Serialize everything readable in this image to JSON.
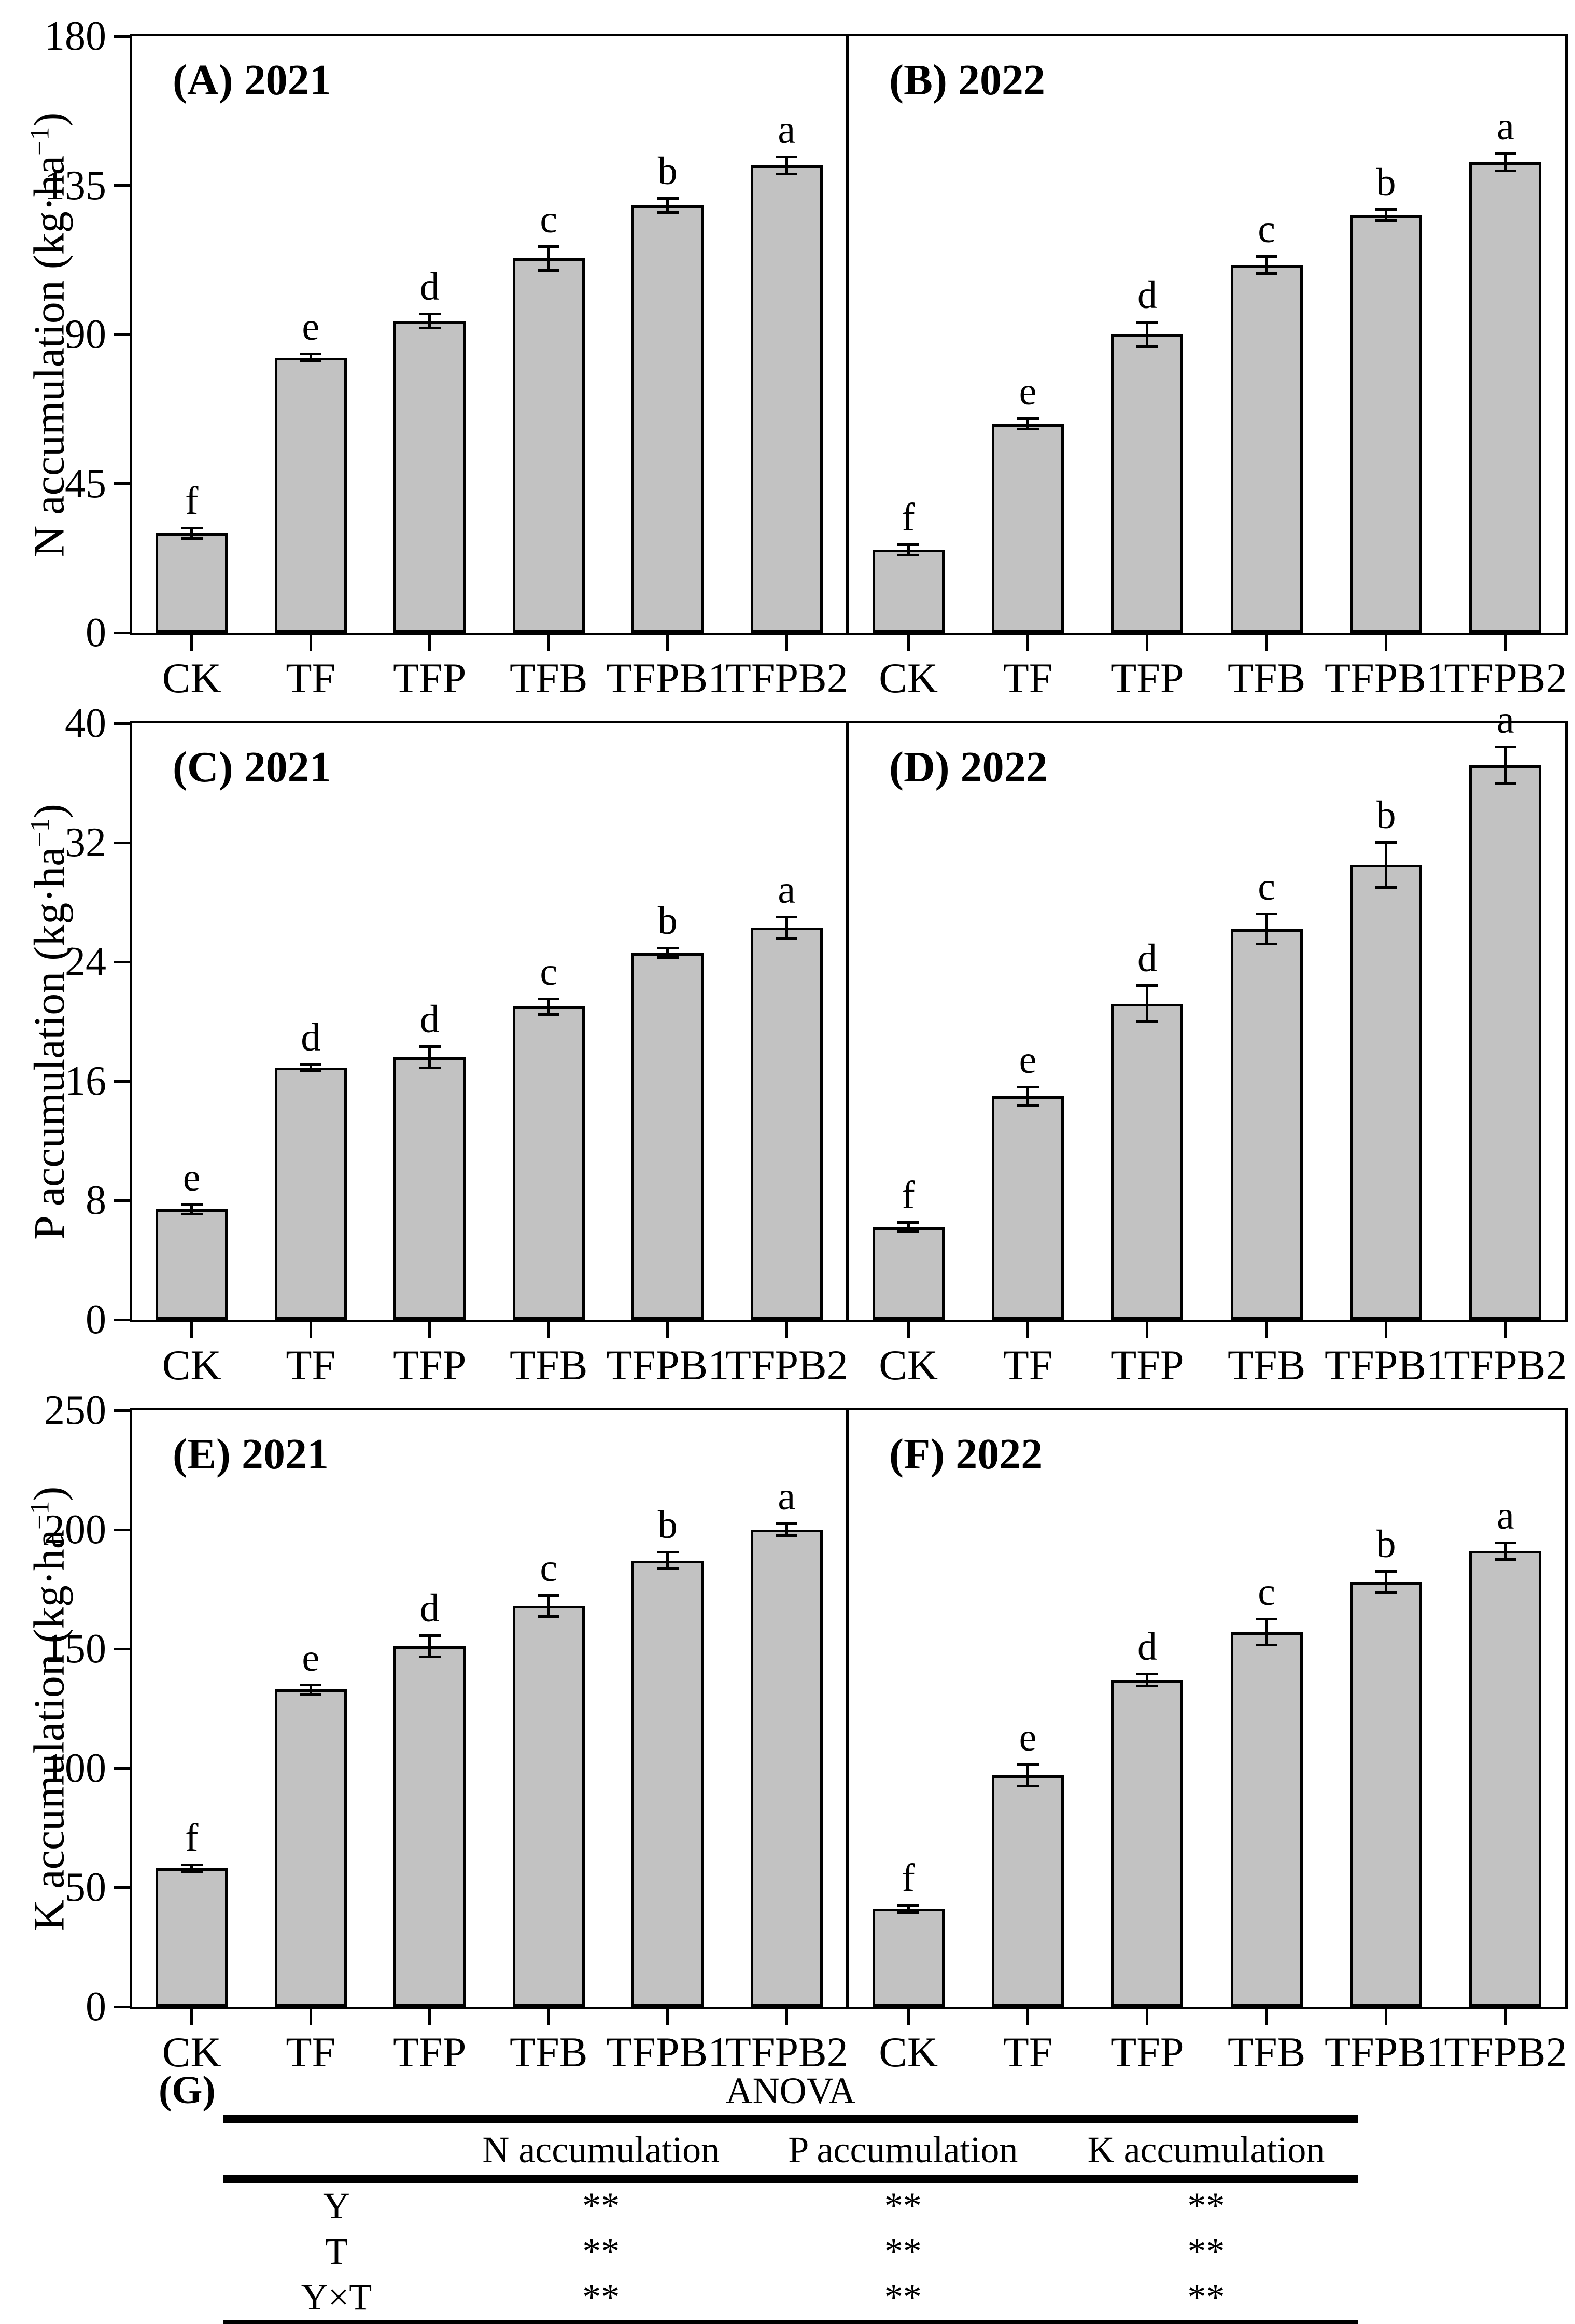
{
  "anova": {
    "panel_label": "(G)",
    "title": "ANOVA",
    "columns": [
      "N accumulation",
      "P accumulation",
      "K accumulation"
    ],
    "rows": [
      {
        "label": "Y",
        "values": [
          "**",
          "**",
          "**"
        ]
      },
      {
        "label": "T",
        "values": [
          "**",
          "**",
          "**"
        ]
      },
      {
        "label": "Y×T",
        "values": [
          "**",
          "**",
          "**"
        ]
      }
    ]
  },
  "chart_data": [
    {
      "type": "bar",
      "panel": "a",
      "title": "(A) 2021",
      "year": "2021",
      "ylabel": "N accumulation (kg·ha⁻¹)",
      "categories": [
        "CK",
        "TF",
        "TFP",
        "TFB",
        "TFPB1",
        "TFPB2"
      ],
      "values": [
        30,
        83,
        94,
        113,
        129,
        141
      ],
      "errors": [
        2,
        1.5,
        2.5,
        4,
        2.5,
        3
      ],
      "letters": [
        "f",
        "e",
        "d",
        "c",
        "b",
        "a"
      ],
      "ylim": [
        0,
        180
      ],
      "yticks": [
        0,
        45,
        90,
        135,
        180
      ],
      "grid": false,
      "legend": "none"
    },
    {
      "type": "bar",
      "panel": "b",
      "title": "(B) 2022",
      "year": "2022",
      "ylabel": "N accumulation (kg·ha⁻¹)",
      "categories": [
        "CK",
        "TF",
        "TFP",
        "TFB",
        "TFPB1",
        "TFPB2"
      ],
      "values": [
        25,
        63,
        90,
        111,
        126,
        142
      ],
      "errors": [
        2,
        2,
        4,
        3,
        2,
        3
      ],
      "letters": [
        "f",
        "e",
        "d",
        "c",
        "b",
        "a"
      ],
      "ylim": [
        0,
        180
      ],
      "yticks": [
        0,
        45,
        90,
        135,
        180
      ],
      "grid": false,
      "legend": "none"
    },
    {
      "type": "bar",
      "panel": "c",
      "title": "(C) 2021",
      "year": "2021",
      "ylabel": "P accumulation (kg·ha⁻¹)",
      "categories": [
        "CK",
        "TF",
        "TFP",
        "TFB",
        "TFPB1",
        "TFPB2"
      ],
      "values": [
        7.4,
        16.9,
        17.6,
        21.0,
        24.6,
        26.3
      ],
      "errors": [
        0.4,
        0.3,
        0.8,
        0.6,
        0.4,
        0.8
      ],
      "letters": [
        "e",
        "d",
        "d",
        "c",
        "b",
        "a"
      ],
      "ylim": [
        0,
        40
      ],
      "yticks": [
        0,
        8,
        16,
        24,
        32,
        40
      ],
      "grid": false,
      "legend": "none"
    },
    {
      "type": "bar",
      "panel": "d",
      "title": "(D) 2022",
      "year": "2022",
      "ylabel": "P accumulation (kg·ha⁻¹)",
      "categories": [
        "CK",
        "TF",
        "TFP",
        "TFB",
        "TFPB1",
        "TFPB2"
      ],
      "values": [
        6.2,
        15.0,
        21.2,
        26.2,
        30.5,
        37.2
      ],
      "errors": [
        0.4,
        0.7,
        1.3,
        1.1,
        1.6,
        1.3
      ],
      "letters": [
        "f",
        "e",
        "d",
        "c",
        "b",
        "a"
      ],
      "ylim": [
        0,
        40
      ],
      "yticks": [
        0,
        8,
        16,
        24,
        32,
        40
      ],
      "grid": false,
      "legend": "none"
    },
    {
      "type": "bar",
      "panel": "e",
      "title": "(E) 2021",
      "year": "2021",
      "ylabel": "K accumulation (kg·ha⁻¹)",
      "categories": [
        "CK",
        "TF",
        "TFP",
        "TFB",
        "TFPB1",
        "TFPB2"
      ],
      "values": [
        58,
        133,
        151,
        168,
        187,
        200
      ],
      "errors": [
        2,
        2.5,
        5,
        5,
        4,
        3
      ],
      "letters": [
        "f",
        "e",
        "d",
        "c",
        "b",
        "a"
      ],
      "ylim": [
        0,
        250
      ],
      "yticks": [
        0,
        50,
        100,
        150,
        200,
        250
      ],
      "grid": false,
      "legend": "none"
    },
    {
      "type": "bar",
      "panel": "f",
      "title": "(F) 2022",
      "year": "2022",
      "ylabel": "K accumulation (kg·ha⁻¹)",
      "categories": [
        "CK",
        "TF",
        "TFP",
        "TFB",
        "TFPB1",
        "TFPB2"
      ],
      "values": [
        41,
        97,
        137,
        157,
        178,
        191
      ],
      "errors": [
        2,
        5,
        3,
        6,
        5,
        4
      ],
      "letters": [
        "f",
        "e",
        "d",
        "c",
        "b",
        "a"
      ],
      "ylim": [
        0,
        250
      ],
      "yticks": [
        0,
        50,
        100,
        150,
        200,
        250
      ],
      "grid": false,
      "legend": "none"
    }
  ],
  "style": {
    "bar_fill": "#c2c2c2",
    "bar_edge": "#000000",
    "axis_color": "#000000",
    "background": "#ffffff"
  }
}
